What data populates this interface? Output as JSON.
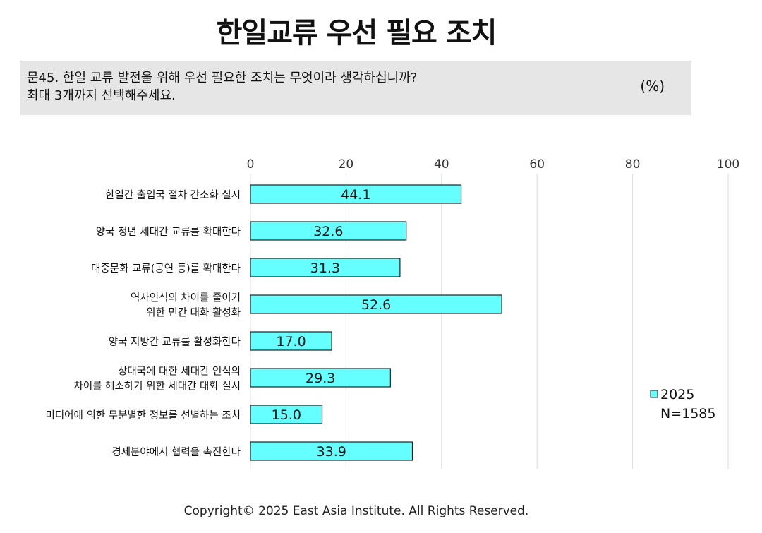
{
  "title": "한일교류 우선 필요 조치",
  "question": {
    "line1": "문45. 한일 교류 발전을 위해 우선 필요한 조치는 무엇이라 생각하십니까?",
    "line2": "최대 3개까지 선택해주세요.",
    "unit": "(%)"
  },
  "chart_data": {
    "type": "bar",
    "orientation": "horizontal",
    "categories": [
      [
        "한일간 출입국 절차 간소화 실시"
      ],
      [
        "양국 청년 세대간 교류를 확대한다"
      ],
      [
        "대중문화 교류(공연 등)를 확대한다"
      ],
      [
        "역사인식의 차이를 줄이기",
        "위한 민간 대화 활성화"
      ],
      [
        "양국 지방간 교류를 활성화한다"
      ],
      [
        "상대국에 대한 세대간 인식의",
        "차이를 해소하기 위한 세대간 대화 실시"
      ],
      [
        "미디어에 의한 무분별한 정보를 선별하는 조치"
      ],
      [
        "경제분야에서 협력을 촉진한다"
      ]
    ],
    "series": [
      {
        "name": "2025",
        "values": [
          44.1,
          32.6,
          31.3,
          52.6,
          17.0,
          29.3,
          15.0,
          33.9
        ],
        "labels": [
          "44.1",
          "32.6",
          "31.3",
          "52.6",
          "17.0",
          "29.3",
          "15.0",
          "33.9"
        ],
        "color": "#66ffff"
      }
    ],
    "xlim": [
      0,
      100
    ],
    "xticks": [
      "0",
      "20",
      "40",
      "60",
      "80",
      "100"
    ],
    "axis_position": "top",
    "grid": true,
    "legend": {
      "position": "right",
      "label": "2025",
      "note": "N=1585"
    }
  },
  "colors": {
    "bar_fill": "#66ffff",
    "bar_stroke": "#222222",
    "grid": "#dddddd",
    "question_bg": "#e6e6e6"
  },
  "footer": "Copyright© 2025 East Asia Institute. All Rights Reserved."
}
